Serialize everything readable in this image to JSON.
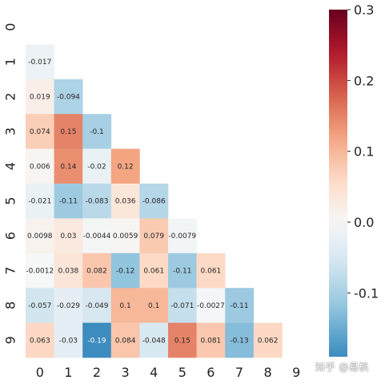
{
  "chart_data": {
    "type": "heatmap",
    "title": "",
    "xlabel": "",
    "ylabel": "",
    "row_labels": [
      "0",
      "1",
      "2",
      "3",
      "4",
      "5",
      "6",
      "7",
      "8",
      "9"
    ],
    "col_labels": [
      "0",
      "1",
      "2",
      "3",
      "4",
      "5",
      "6",
      "7",
      "8",
      "9"
    ],
    "mask": "upper triangle including diagonal",
    "values": [
      [
        null,
        null,
        null,
        null,
        null,
        null,
        null,
        null,
        null,
        null
      ],
      [
        "-0.017",
        null,
        null,
        null,
        null,
        null,
        null,
        null,
        null,
        null
      ],
      [
        "0.019",
        "-0.094",
        null,
        null,
        null,
        null,
        null,
        null,
        null,
        null
      ],
      [
        "0.074",
        "0.15",
        "-0.1",
        null,
        null,
        null,
        null,
        null,
        null,
        null
      ],
      [
        "0.006",
        "0.14",
        "-0.02",
        "0.12",
        null,
        null,
        null,
        null,
        null,
        null
      ],
      [
        "-0.021",
        "-0.11",
        "-0.083",
        "0.036",
        "-0.086",
        null,
        null,
        null,
        null,
        null
      ],
      [
        "0.0098",
        "0.03",
        "-0.0044",
        "0.0059",
        "0.079",
        "-0.0079",
        null,
        null,
        null,
        null
      ],
      [
        "-0.0012",
        "0.038",
        "0.082",
        "-0.12",
        "0.061",
        "-0.11",
        "0.061",
        null,
        null,
        null
      ],
      [
        "-0.057",
        "-0.029",
        "-0.049",
        "0.1",
        "0.1",
        "-0.071",
        "-0.0027",
        "-0.11",
        null,
        null
      ],
      [
        "0.063",
        "-0.03",
        "-0.19",
        "0.084",
        "-0.048",
        "0.15",
        "0.081",
        "-0.13",
        "0.062",
        null
      ]
    ],
    "colormap": "RdBu_r",
    "vmin": -0.19,
    "vmax": 0.3,
    "colorbar_ticks": [
      "0.3",
      "0.2",
      "0.1",
      "0.0",
      "-0.1"
    ],
    "colorbar_tick_values": [
      0.3,
      0.2,
      0.1,
      0.0,
      -0.1
    ]
  },
  "watermark": "知乎 @易枫"
}
